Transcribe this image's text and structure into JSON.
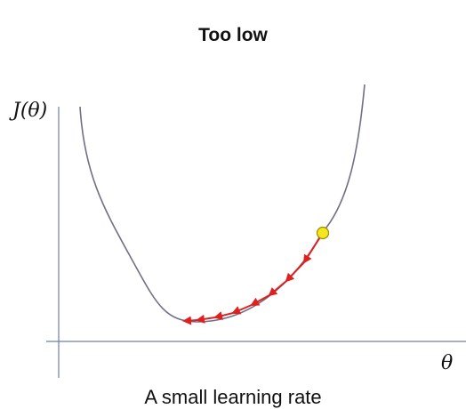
{
  "title": "Too low",
  "y_axis_label": "J(θ)",
  "x_axis_label": "θ",
  "caption": "A small learning rate",
  "colors": {
    "axis": "#6d7eb0",
    "curve": "#6f7086",
    "steps": "#e02020",
    "start_point": "#f4e81c",
    "start_point_stroke": "#9b8a00"
  },
  "diagram": {
    "curve_shape": "convex U-shaped cost function",
    "start_point_icon": "yellow-circle",
    "step_icon": "red-arrow",
    "step_count": 8,
    "step_direction": "down the right slope toward the minimum"
  }
}
